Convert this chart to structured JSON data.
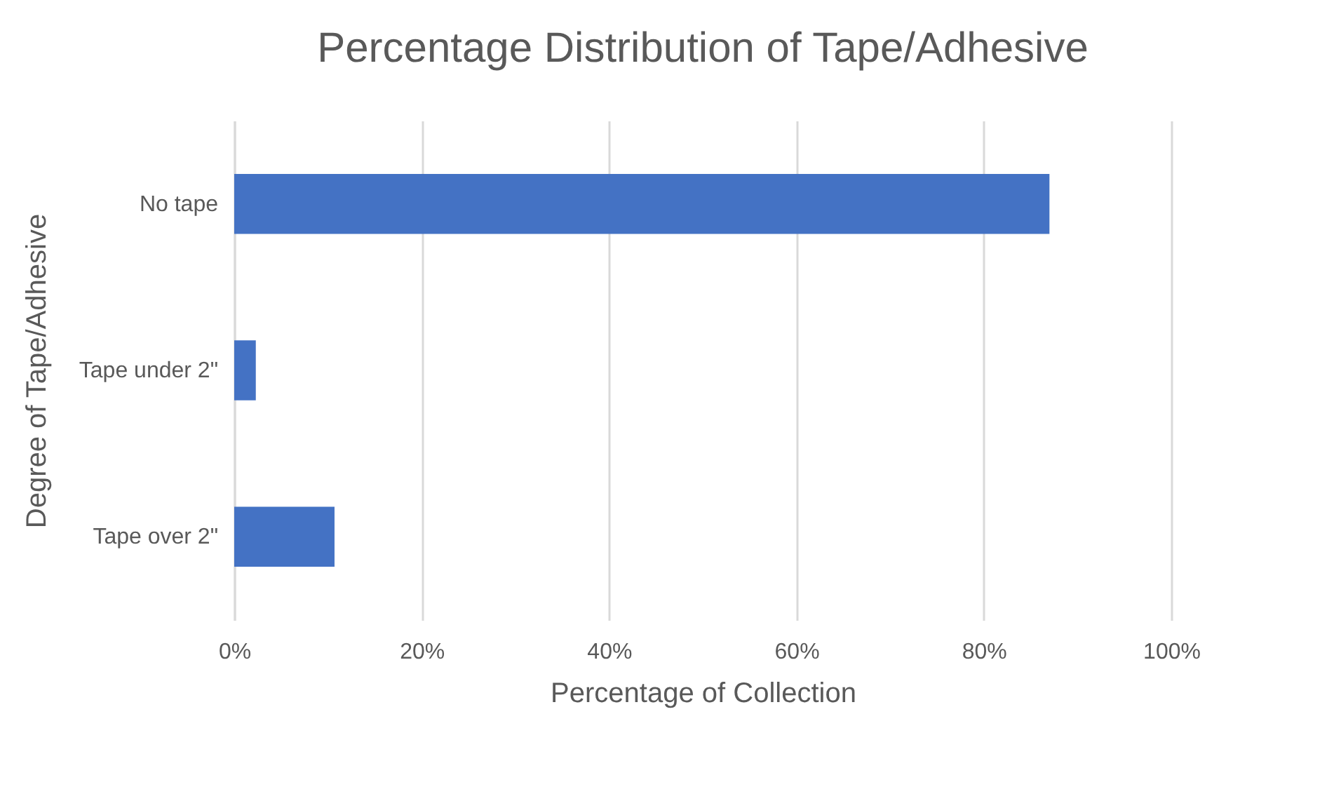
{
  "chart_data": {
    "type": "bar",
    "orientation": "horizontal",
    "title": "Percentage Distribution of Tape/Adhesive",
    "xlabel": "Percentage of Collection",
    "ylabel": "Degree of Tape/Adhesive",
    "categories": [
      "No tape",
      "Tape under 2\"",
      "Tape over 2\""
    ],
    "values": [
      87,
      2.3,
      10.7
    ],
    "color": "#4472c4",
    "xlim": [
      0,
      100
    ],
    "xticks": [
      {
        "value": 0,
        "label": "0%"
      },
      {
        "value": 20,
        "label": "20%"
      },
      {
        "value": 40,
        "label": "40%"
      },
      {
        "value": 60,
        "label": "60%"
      },
      {
        "value": 80,
        "label": "80%"
      },
      {
        "value": 100,
        "label": "100%"
      }
    ],
    "grid": "x"
  }
}
